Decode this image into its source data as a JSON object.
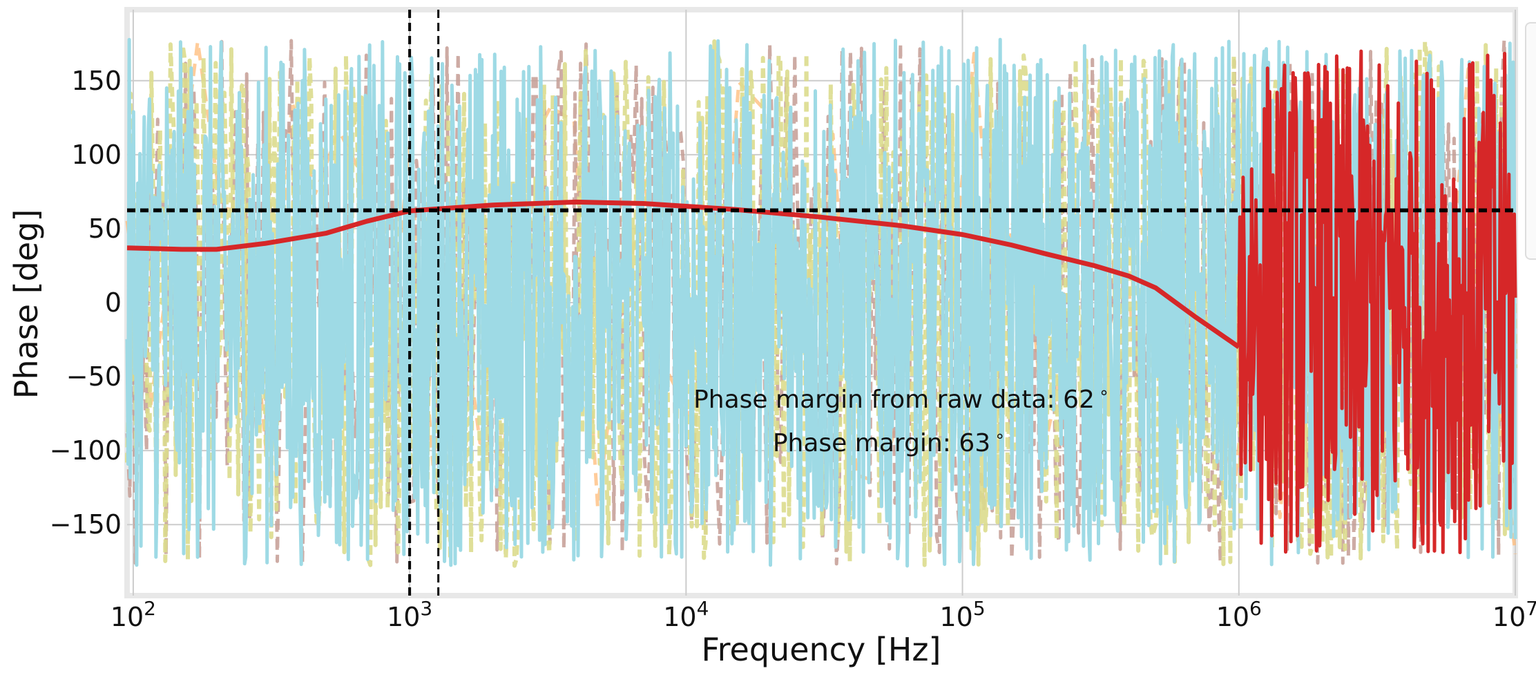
{
  "chart_data": {
    "type": "line",
    "title": "",
    "xlabel": "Frequency [Hz]",
    "ylabel": "Phase [deg]",
    "xscale": "log",
    "xlim": [
      95,
      10000000
    ],
    "ylim": [
      -198,
      198
    ],
    "grid": true,
    "x_ticks": [
      {
        "value": 100,
        "base": "10",
        "exp": "2"
      },
      {
        "value": 1000,
        "base": "10",
        "exp": "3"
      },
      {
        "value": 10000,
        "base": "10",
        "exp": "4"
      },
      {
        "value": 100000,
        "base": "10",
        "exp": "5"
      },
      {
        "value": 1000000,
        "base": "10",
        "exp": "6"
      },
      {
        "value": 10000000,
        "base": "10",
        "exp": "7"
      }
    ],
    "y_ticks": [
      {
        "value": 150,
        "label": "150"
      },
      {
        "value": 100,
        "label": "100"
      },
      {
        "value": 50,
        "label": "50"
      },
      {
        "value": 0,
        "label": "0"
      },
      {
        "value": -50,
        "label": "−50"
      },
      {
        "value": -100,
        "label": "−100"
      },
      {
        "value": -150,
        "label": "−150"
      }
    ],
    "colors": {
      "raw_phase": "#d62728",
      "noise_a": "#9edae5",
      "noise_b": "#dbdb8d",
      "noise_c": "#c49c94",
      "noise_d": "#ffbb78",
      "reference": "#000000"
    },
    "series": [
      {
        "color_key": "raw_phase",
        "x": [
          95,
          150,
          200,
          300,
          500,
          700,
          1000,
          2000,
          4000,
          7000,
          15000,
          30000,
          60000,
          100000,
          150000,
          200000,
          300000,
          400000,
          500000,
          700000,
          1000000
        ],
        "y": [
          37,
          36,
          36,
          40,
          47,
          55,
          62,
          66,
          68,
          67,
          63,
          58,
          52,
          46,
          39,
          33,
          25,
          18,
          10,
          -10,
          -30
        ]
      }
    ],
    "reference_lines": [
      {
        "orientation": "horizontal",
        "value": 62,
        "style": "dashed"
      },
      {
        "orientation": "horizontal",
        "value": 63,
        "style": "dashed"
      },
      {
        "orientation": "vertical",
        "value": 1000,
        "style": "dashed"
      },
      {
        "orientation": "vertical",
        "value": 1270,
        "style": "dashed"
      }
    ],
    "annotations": [
      {
        "text": "Phase margin from raw data: 62",
        "suffix": "∘"
      },
      {
        "text": "Phase margin: 63",
        "suffix": "∘"
      }
    ]
  }
}
